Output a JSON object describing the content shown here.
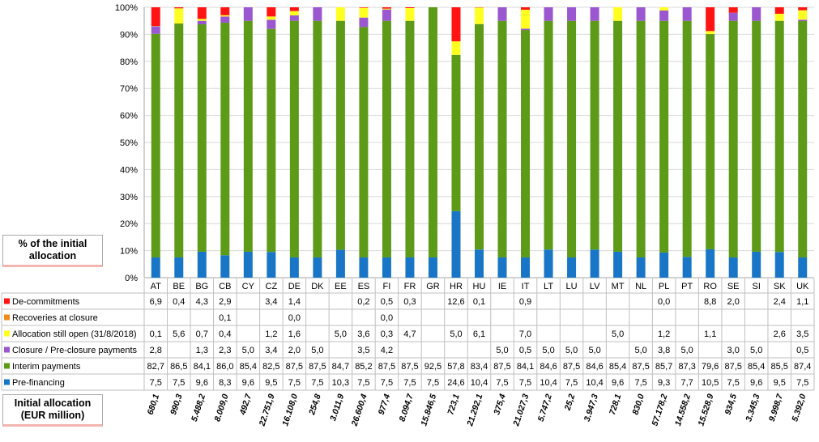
{
  "chart_data": {
    "type": "bar",
    "stacked": true,
    "ylim": [
      0,
      100
    ],
    "y_ticks": [
      "0%",
      "10%",
      "20%",
      "30%",
      "40%",
      "50%",
      "60%",
      "70%",
      "80%",
      "90%",
      "100%"
    ],
    "grid": true,
    "categories": [
      "AT",
      "BE",
      "BG",
      "CB",
      "CY",
      "CZ",
      "DE",
      "DK",
      "EE",
      "ES",
      "FI",
      "FR",
      "GR",
      "HR",
      "HU",
      "IE",
      "IT",
      "LT",
      "LU",
      "LV",
      "MT",
      "NL",
      "PL",
      "PT",
      "RO",
      "SE",
      "SI",
      "SK",
      "UK"
    ],
    "series": [
      {
        "name": "Pre-financing",
        "color": "#1976c7",
        "values": [
          7.5,
          7.5,
          9.6,
          8.3,
          9.6,
          9.5,
          7.5,
          7.5,
          10.3,
          7.5,
          7.5,
          7.5,
          7.5,
          24.6,
          10.4,
          7.5,
          7.5,
          10.4,
          7.5,
          10.4,
          9.6,
          7.5,
          9.3,
          7.7,
          10.5,
          7.5,
          9.6,
          9.5,
          7.5
        ],
        "labels": [
          "7,5",
          "7,5",
          "9,6",
          "8,3",
          "9,6",
          "9,5",
          "7,5",
          "7,5",
          "10,3",
          "7,5",
          "7,5",
          "7,5",
          "7,5",
          "24,6",
          "10,4",
          "7,5",
          "7,5",
          "10,4",
          "7,5",
          "10,4",
          "9,6",
          "7,5",
          "9,3",
          "7,7",
          "10,5",
          "7,5",
          "9,6",
          "9,5",
          "7,5"
        ]
      },
      {
        "name": "Interim payments",
        "color": "#5c9a18",
        "values": [
          82.7,
          86.5,
          84.1,
          86.0,
          85.4,
          82.5,
          87.5,
          87.5,
          84.7,
          85.2,
          87.5,
          87.5,
          92.5,
          57.8,
          83.4,
          87.5,
          84.1,
          84.6,
          87.5,
          84.6,
          85.4,
          87.5,
          85.7,
          87.3,
          79.6,
          87.5,
          85.4,
          85.5,
          87.4
        ],
        "labels": [
          "82,7",
          "86,5",
          "84,1",
          "86,0",
          "85,4",
          "82,5",
          "87,5",
          "87,5",
          "84,7",
          "85,2",
          "87,5",
          "87,5",
          "92,5",
          "57,8",
          "83,4",
          "87,5",
          "84,1",
          "84,6",
          "87,5",
          "84,6",
          "85,4",
          "87,5",
          "85,7",
          "87,3",
          "79,6",
          "87,5",
          "85,4",
          "85,5",
          "87,4"
        ]
      },
      {
        "name": "Closure / Pre-closure payments",
        "color": "#9a57cf",
        "values": [
          2.8,
          0,
          1.3,
          2.3,
          5.0,
          3.4,
          2.0,
          5.0,
          0,
          3.5,
          4.2,
          0,
          0,
          0,
          0,
          5.0,
          0.5,
          5.0,
          5.0,
          5.0,
          0,
          5.0,
          3.8,
          5.0,
          0,
          3.0,
          5.0,
          0,
          0.5
        ],
        "labels": [
          "2,8",
          "",
          "1,3",
          "2,3",
          "5,0",
          "3,4",
          "2,0",
          "5,0",
          "",
          "3,5",
          "4,2",
          "",
          "",
          "",
          "",
          "5,0",
          "0,5",
          "5,0",
          "5,0",
          "5,0",
          "",
          "5,0",
          "3,8",
          "5,0",
          "",
          "3,0",
          "5,0",
          "",
          "0,5"
        ]
      },
      {
        "name": "Allocation still open (31/8/2018)",
        "color": "#ffff22",
        "values": [
          0.1,
          5.6,
          0.7,
          0.4,
          0,
          1.2,
          1.6,
          0,
          5.0,
          3.6,
          0.3,
          4.7,
          0,
          5.0,
          6.1,
          0,
          7.0,
          0,
          0,
          0,
          5.0,
          0,
          1.2,
          0,
          1.1,
          0,
          0,
          2.6,
          3.5
        ],
        "labels": [
          "0,1",
          "5,6",
          "0,7",
          "0,4",
          "",
          "1,2",
          "1,6",
          "",
          "5,0",
          "3,6",
          "0,3",
          "4,7",
          "",
          "5,0",
          "6,1",
          "",
          "7,0",
          "",
          "",
          "",
          "5,0",
          "",
          "1,2",
          "",
          "1,1",
          "",
          "",
          "2,6",
          "3,5"
        ]
      },
      {
        "name": "Recoveries at closure",
        "color": "#f08a1e",
        "values": [
          0,
          0,
          0,
          0.1,
          0,
          0,
          0,
          0,
          0,
          0,
          0,
          0,
          0,
          0,
          0,
          0,
          0,
          0,
          0,
          0,
          0,
          0,
          0,
          0,
          0,
          0,
          0,
          0,
          0
        ],
        "labels": [
          "",
          "",
          "",
          "0,1",
          "",
          "",
          "0,0",
          "",
          "",
          "",
          "0,0",
          "",
          "",
          "",
          "",
          "",
          "",
          "",
          "",
          "",
          "",
          "",
          "",
          "",
          "",
          "",
          "",
          "",
          ""
        ]
      },
      {
        "name": "De-commitments",
        "color": "#ff1313",
        "values": [
          6.9,
          0.4,
          4.3,
          2.9,
          0,
          3.4,
          1.4,
          0,
          0,
          0.2,
          0.5,
          0.3,
          0,
          12.6,
          0.1,
          0,
          0.9,
          0,
          0,
          0,
          0,
          0,
          0,
          0,
          8.8,
          2.0,
          0,
          2.4,
          1.1
        ],
        "labels": [
          "6,9",
          "0,4",
          "4,3",
          "2,9",
          "",
          "3,4",
          "1,4",
          "",
          "",
          "0,2",
          "0,5",
          "0,3",
          "",
          "12,6",
          "0,1",
          "",
          "0,9",
          "",
          "",
          "",
          "",
          "",
          "0,0",
          "",
          "8,8",
          "2,0",
          "",
          "2,4",
          "1,1"
        ]
      }
    ],
    "table_header_label": "% of the initial allocation",
    "allocation_label": "Initial allocation (EUR million)",
    "allocations": [
      "680,1",
      "990,3",
      "5.488,2",
      "8.009,0",
      "492,7",
      "22.751,9",
      "16.108,0",
      "254,8",
      "3.011,9",
      "26.600,4",
      "977,4",
      "8.094,7",
      "15.846,5",
      "723,1",
      "21.292,1",
      "375,4",
      "21.027,3",
      "5.747,2",
      "25,2",
      "3.947,3",
      "728,1",
      "830,0",
      "57.178,2",
      "14.558,2",
      "15.528,9",
      "934,5",
      "3.345,3",
      "9.998,7",
      "5.392,0"
    ]
  }
}
